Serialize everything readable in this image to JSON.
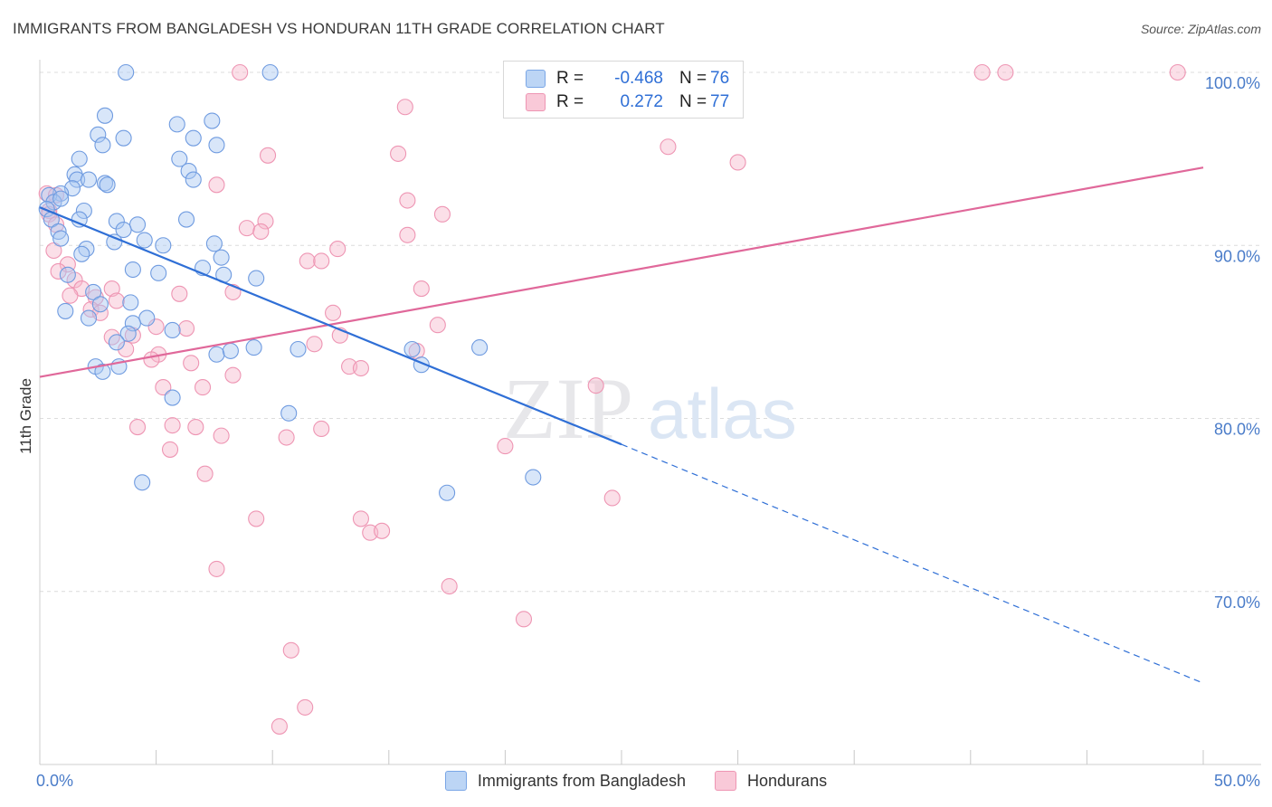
{
  "header": {
    "title": "IMMIGRANTS FROM BANGLADESH VS HONDURAN 11TH GRADE CORRELATION CHART",
    "source": "Source: ZipAtlas.com"
  },
  "watermark": {
    "zip": "ZIP",
    "atlas": "atlas"
  },
  "legend": {
    "rows": [
      {
        "r_label": "R =",
        "r_value": "-0.468",
        "n_label": "N =",
        "n_value": "76",
        "color": "#a9c8f2"
      },
      {
        "r_label": "R =",
        "r_value": "0.272",
        "n_label": "N =",
        "n_value": "77",
        "color": "#f7b8cb"
      }
    ]
  },
  "bottom_legend": [
    {
      "label": "Immigrants from Bangladesh",
      "color": "#a9c8f2"
    },
    {
      "label": "Hondurans",
      "color": "#f7b8cb"
    }
  ],
  "chart_data": {
    "type": "scatter",
    "ylabel": "11th Grade",
    "xlim": [
      0,
      50
    ],
    "ylim": [
      60,
      100
    ],
    "x_tick_labels": [
      "0.0%",
      "50.0%"
    ],
    "y_tick_labels": [
      "70.0%",
      "80.0%",
      "90.0%",
      "100.0%"
    ],
    "y_ticks": [
      70,
      80,
      90,
      100
    ],
    "grid": true,
    "colors": {
      "blue": "#2f6fd6",
      "blue_fill": "#a9c8f2",
      "pink": "#e0689a",
      "pink_fill": "#f7b8cb",
      "tick_text": "#4a7cc9"
    },
    "series": [
      {
        "name": "Immigrants from Bangladesh",
        "trend": {
          "x0": 0,
          "y0": 92.2,
          "x1": 25,
          "y1": 78.5,
          "dash_to_x": 50,
          "dash_to_y": 64.7
        },
        "points": [
          [
            3.7,
            100.0
          ],
          [
            9.9,
            100.0
          ],
          [
            2.8,
            97.5
          ],
          [
            7.4,
            97.2
          ],
          [
            5.9,
            97.0
          ],
          [
            2.5,
            96.4
          ],
          [
            3.6,
            96.2
          ],
          [
            6.6,
            96.2
          ],
          [
            2.7,
            95.8
          ],
          [
            7.6,
            95.8
          ],
          [
            1.7,
            95.0
          ],
          [
            6.0,
            95.0
          ],
          [
            6.4,
            94.3
          ],
          [
            1.5,
            94.1
          ],
          [
            1.6,
            93.8
          ],
          [
            2.1,
            93.8
          ],
          [
            6.6,
            93.8
          ],
          [
            2.8,
            93.6
          ],
          [
            2.9,
            93.5
          ],
          [
            1.4,
            93.3
          ],
          [
            0.9,
            93.0
          ],
          [
            0.4,
            92.9
          ],
          [
            0.6,
            92.5
          ],
          [
            0.9,
            92.7
          ],
          [
            0.3,
            92.1
          ],
          [
            1.9,
            92.0
          ],
          [
            0.5,
            91.5
          ],
          [
            1.7,
            91.5
          ],
          [
            3.3,
            91.4
          ],
          [
            4.2,
            91.2
          ],
          [
            6.3,
            91.5
          ],
          [
            3.6,
            90.9
          ],
          [
            0.8,
            90.8
          ],
          [
            0.9,
            90.4
          ],
          [
            3.2,
            90.2
          ],
          [
            4.5,
            90.3
          ],
          [
            7.5,
            90.1
          ],
          [
            5.3,
            90.0
          ],
          [
            2.0,
            89.8
          ],
          [
            1.8,
            89.5
          ],
          [
            7.8,
            89.3
          ],
          [
            4.0,
            88.6
          ],
          [
            7.0,
            88.7
          ],
          [
            5.1,
            88.4
          ],
          [
            7.9,
            88.3
          ],
          [
            9.3,
            88.1
          ],
          [
            1.2,
            88.3
          ],
          [
            2.3,
            87.3
          ],
          [
            1.1,
            86.2
          ],
          [
            3.9,
            86.7
          ],
          [
            2.6,
            86.6
          ],
          [
            2.1,
            85.8
          ],
          [
            4.6,
            85.8
          ],
          [
            4.0,
            85.5
          ],
          [
            5.7,
            85.1
          ],
          [
            3.8,
            84.9
          ],
          [
            3.3,
            84.4
          ],
          [
            9.2,
            84.1
          ],
          [
            11.1,
            84.0
          ],
          [
            16.0,
            84.0
          ],
          [
            18.9,
            84.1
          ],
          [
            7.6,
            83.7
          ],
          [
            8.2,
            83.9
          ],
          [
            3.4,
            83.0
          ],
          [
            2.4,
            83.0
          ],
          [
            2.7,
            82.7
          ],
          [
            16.4,
            83.1
          ],
          [
            5.7,
            81.2
          ],
          [
            10.7,
            80.3
          ],
          [
            21.2,
            76.6
          ],
          [
            4.4,
            76.3
          ],
          [
            17.5,
            75.7
          ]
        ]
      },
      {
        "name": "Hondurans",
        "trend": {
          "x0": 0,
          "y0": 82.4,
          "x1": 50,
          "y1": 94.5
        },
        "points": [
          [
            8.6,
            100.0
          ],
          [
            28.1,
            100.0
          ],
          [
            24.6,
            100.0
          ],
          [
            40.5,
            100.0
          ],
          [
            41.5,
            100.0
          ],
          [
            48.9,
            100.0
          ],
          [
            15.7,
            98.0
          ],
          [
            27.0,
            95.7
          ],
          [
            30.0,
            94.8
          ],
          [
            15.4,
            95.3
          ],
          [
            9.8,
            95.2
          ],
          [
            7.6,
            93.5
          ],
          [
            0.3,
            93.0
          ],
          [
            0.7,
            92.9
          ],
          [
            15.8,
            92.6
          ],
          [
            0.4,
            92.0
          ],
          [
            0.4,
            91.8
          ],
          [
            17.3,
            91.8
          ],
          [
            9.7,
            91.4
          ],
          [
            0.7,
            91.2
          ],
          [
            8.9,
            91.0
          ],
          [
            9.5,
            90.8
          ],
          [
            15.8,
            90.6
          ],
          [
            0.6,
            89.7
          ],
          [
            12.8,
            89.8
          ],
          [
            11.5,
            89.1
          ],
          [
            12.1,
            89.1
          ],
          [
            1.2,
            88.9
          ],
          [
            0.8,
            88.5
          ],
          [
            1.5,
            88.0
          ],
          [
            1.8,
            87.5
          ],
          [
            3.1,
            87.5
          ],
          [
            16.4,
            87.5
          ],
          [
            8.3,
            87.3
          ],
          [
            6.0,
            87.2
          ],
          [
            1.3,
            87.1
          ],
          [
            2.4,
            87.0
          ],
          [
            3.3,
            86.8
          ],
          [
            2.2,
            86.3
          ],
          [
            2.6,
            86.1
          ],
          [
            12.6,
            86.1
          ],
          [
            17.1,
            85.4
          ],
          [
            6.3,
            85.2
          ],
          [
            5.0,
            85.3
          ],
          [
            4.0,
            84.8
          ],
          [
            3.1,
            84.7
          ],
          [
            12.9,
            84.8
          ],
          [
            3.7,
            84.0
          ],
          [
            11.8,
            84.3
          ],
          [
            16.2,
            83.9
          ],
          [
            5.1,
            83.7
          ],
          [
            4.8,
            83.4
          ],
          [
            6.5,
            83.2
          ],
          [
            13.3,
            83.0
          ],
          [
            13.8,
            82.9
          ],
          [
            8.3,
            82.5
          ],
          [
            5.3,
            81.8
          ],
          [
            7.0,
            81.8
          ],
          [
            23.9,
            81.9
          ],
          [
            4.2,
            79.5
          ],
          [
            5.7,
            79.6
          ],
          [
            6.7,
            79.5
          ],
          [
            12.1,
            79.4
          ],
          [
            7.8,
            79.0
          ],
          [
            10.6,
            78.9
          ],
          [
            20.0,
            78.4
          ],
          [
            5.6,
            78.2
          ],
          [
            7.1,
            76.8
          ],
          [
            24.6,
            75.4
          ],
          [
            9.3,
            74.2
          ],
          [
            13.8,
            74.2
          ],
          [
            14.2,
            73.4
          ],
          [
            14.7,
            73.5
          ],
          [
            7.6,
            71.3
          ],
          [
            17.6,
            70.3
          ],
          [
            20.8,
            68.4
          ],
          [
            10.8,
            66.6
          ],
          [
            10.3,
            62.2
          ],
          [
            11.4,
            63.3
          ]
        ]
      }
    ]
  }
}
